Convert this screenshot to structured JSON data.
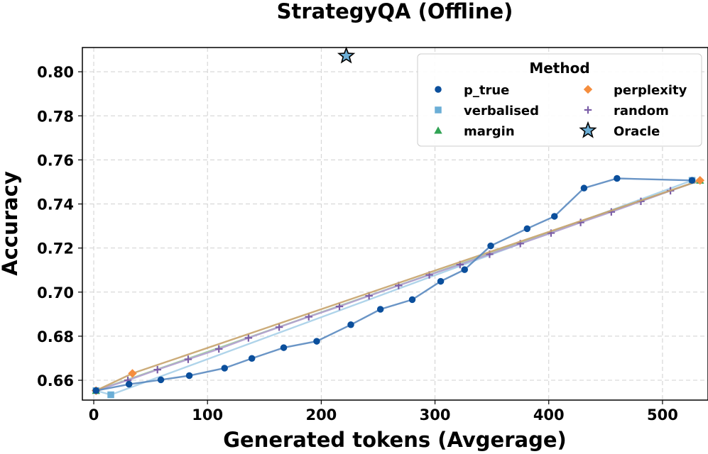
{
  "chart_data": {
    "type": "line",
    "title": "StrategyQA (Offline)",
    "xlabel": "Generated tokens (Avgerage)",
    "ylabel": "Accuracy",
    "xlim": [
      -10,
      540
    ],
    "ylim": [
      0.651,
      0.811
    ],
    "xticks": [
      0,
      100,
      200,
      300,
      400,
      500
    ],
    "yticks": [
      0.66,
      0.68,
      0.7,
      0.72,
      0.74,
      0.76,
      0.78,
      0.8
    ],
    "ytick_labels": [
      "0.66",
      "0.68",
      "0.70",
      "0.72",
      "0.74",
      "0.76",
      "0.78",
      "0.80"
    ],
    "xtick_labels": [
      "0",
      "100",
      "200",
      "300",
      "400",
      "500"
    ],
    "grid": true,
    "legend": {
      "title": "Method",
      "placement": "top-right",
      "columns": 2
    },
    "series": [
      {
        "name": "p_true",
        "marker": "circle",
        "color": "#0b4f9c",
        "line_color": "#5a8ac0",
        "points": [
          [
            2,
            0.6553
          ],
          [
            31,
            0.6582
          ],
          [
            59,
            0.6602
          ],
          [
            84,
            0.6621
          ],
          [
            115,
            0.6655
          ],
          [
            139,
            0.6699
          ],
          [
            167,
            0.6748
          ],
          [
            196,
            0.6777
          ],
          [
            226,
            0.6852
          ],
          [
            252,
            0.6922
          ],
          [
            280,
            0.6966
          ],
          [
            305,
            0.7049
          ],
          [
            326,
            0.7102
          ],
          [
            349,
            0.721
          ],
          [
            381,
            0.7288
          ],
          [
            405,
            0.7344
          ],
          [
            431,
            0.7472
          ],
          [
            460,
            0.7516
          ],
          [
            526,
            0.7507
          ]
        ]
      },
      {
        "name": "verbalised",
        "marker": "square",
        "color": "#6baed6",
        "line_color": "#a6cfe8",
        "points": [
          [
            2,
            0.6553
          ],
          [
            15,
            0.6534
          ],
          [
            526,
            0.7507
          ]
        ]
      },
      {
        "name": "margin",
        "marker": "triangle",
        "color": "#31a354",
        "line_color": "#9fce9f",
        "points": [
          [
            2,
            0.6553
          ],
          [
            533,
            0.7507
          ]
        ]
      },
      {
        "name": "perplexity",
        "marker": "diamond",
        "color": "#f58d3d",
        "line_color": "#c7a36c",
        "points": [
          [
            2,
            0.6553
          ],
          [
            34,
            0.6631
          ],
          [
            533,
            0.7507
          ]
        ]
      },
      {
        "name": "random",
        "marker": "plus",
        "color": "#7b5ea7",
        "line_color": "#b3a0d0",
        "points": [
          [
            2,
            0.6553
          ],
          [
            30,
            0.66
          ],
          [
            56,
            0.6648
          ],
          [
            83,
            0.6695
          ],
          [
            110,
            0.6742
          ],
          [
            136,
            0.6792
          ],
          [
            163,
            0.6841
          ],
          [
            189,
            0.6888
          ],
          [
            216,
            0.6935
          ],
          [
            242,
            0.6983
          ],
          [
            268,
            0.703
          ],
          [
            295,
            0.7078
          ],
          [
            322,
            0.7125
          ],
          [
            348,
            0.7172
          ],
          [
            375,
            0.722
          ],
          [
            402,
            0.7268
          ],
          [
            428,
            0.7316
          ],
          [
            455,
            0.7364
          ],
          [
            481,
            0.7412
          ],
          [
            507,
            0.746
          ],
          [
            533,
            0.7507
          ]
        ]
      },
      {
        "name": "Oracle",
        "marker": "star",
        "color": "#6baed6",
        "line_color": null,
        "points": [
          [
            222,
            0.8072
          ]
        ]
      }
    ]
  }
}
